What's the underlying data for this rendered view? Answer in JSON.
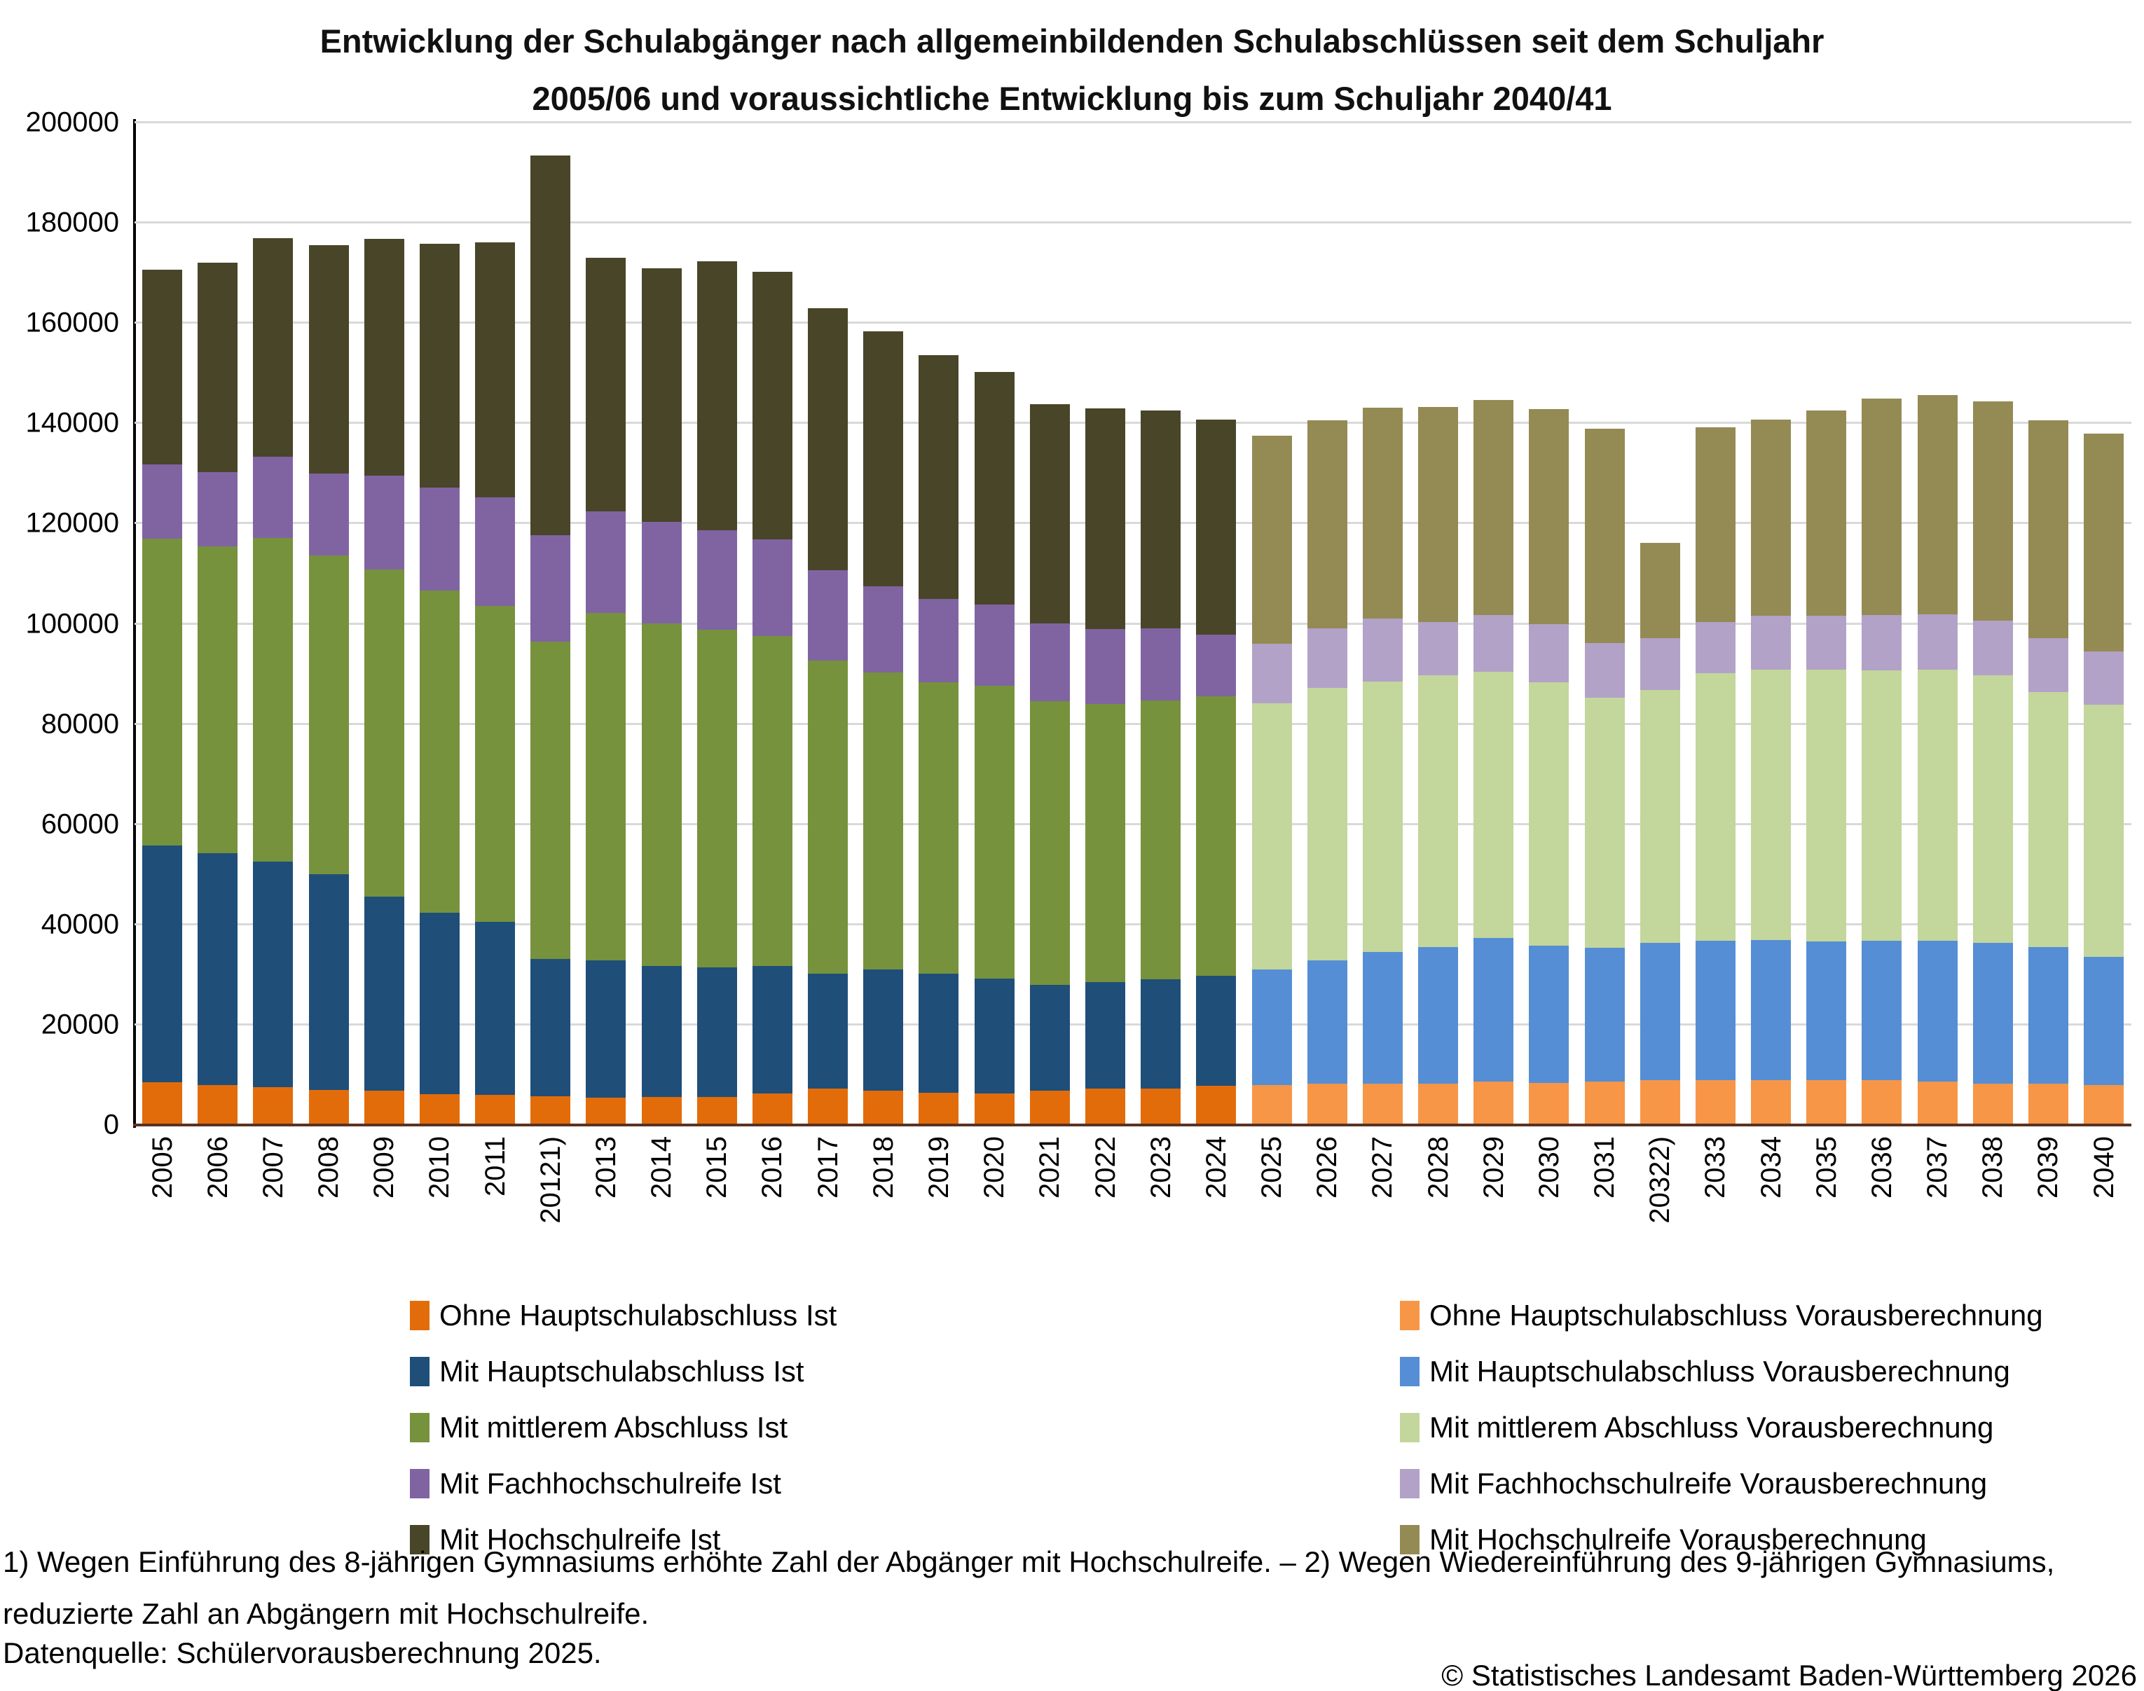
{
  "title": {
    "line1": "Entwicklung der Schulabgänger nach allgemeinbildenden Schulabschlüssen seit dem Schuljahr",
    "line2": "2005/06 und voraussichtliche Entwicklung bis zum Schuljahr 2040/41"
  },
  "chart_data": {
    "type": "bar",
    "stacked": true,
    "title": "Entwicklung der Schulabgänger nach allgemeinbildenden Schulabschlüssen seit dem Schuljahr 2005/06 und voraussichtliche Entwicklung bis zum Schuljahr 2040/41",
    "ylim": [
      0,
      200000
    ],
    "ytick_step": 20000,
    "y_ticks": [
      0,
      20000,
      40000,
      60000,
      80000,
      100000,
      120000,
      140000,
      160000,
      180000,
      200000
    ],
    "grid": "horizontal",
    "legend_position": "bottom",
    "categories": [
      "2005",
      "2006",
      "2007",
      "2008",
      "2009",
      "2010",
      "2011",
      "20121)",
      "2013",
      "2014",
      "2015",
      "2016",
      "2017",
      "2018",
      "2019",
      "2020",
      "2021",
      "2022",
      "2023",
      "2024",
      "2025",
      "2026",
      "2027",
      "2028",
      "2029",
      "2030",
      "2031",
      "20322)",
      "2033",
      "2034",
      "2035",
      "2036",
      "2037",
      "2038",
      "2039",
      "2040"
    ],
    "ist_last_index": 19,
    "series": [
      {
        "name": "Ohne Hauptschulabschluss",
        "color_ist": "#E36C0A",
        "color_proj": "#F79646",
        "values": [
          8500,
          8000,
          7500,
          7000,
          6800,
          6200,
          6000,
          5800,
          5400,
          5600,
          5600,
          6300,
          7200,
          6900,
          6400,
          6300,
          6800,
          7200,
          7300,
          7800,
          8000,
          8300,
          8300,
          8300,
          8700,
          8400,
          8700,
          9000,
          9000,
          9000,
          9000,
          9000,
          8700,
          8300,
          8300,
          8000
        ]
      },
      {
        "name": "Mit Hauptschulabschluss",
        "color_ist": "#1F4E79",
        "color_proj": "#558ED5",
        "values": [
          47200,
          46300,
          45100,
          43100,
          38700,
          36100,
          34500,
          27300,
          27500,
          26100,
          25800,
          25400,
          23000,
          24200,
          23800,
          22900,
          21100,
          21300,
          21800,
          22000,
          23000,
          24500,
          26200,
          27200,
          28600,
          27400,
          26700,
          27300,
          27800,
          27900,
          27600,
          27700,
          28000,
          28100,
          27200,
          25600
        ]
      },
      {
        "name": "Mit mittlerem Abschluss",
        "color_ist": "#76923C",
        "color_proj": "#C3D69B",
        "values": [
          61300,
          61200,
          64500,
          63500,
          65300,
          64400,
          63100,
          63300,
          69300,
          68400,
          67400,
          65800,
          62400,
          59200,
          58200,
          58400,
          56600,
          55500,
          55600,
          55800,
          53200,
          54400,
          54000,
          54200,
          53100,
          52500,
          49800,
          50500,
          53300,
          53900,
          54200,
          54000,
          54200,
          53400,
          50900,
          50300
        ]
      },
      {
        "name": "Mit Fachhochschulreife",
        "color_ist": "#8064A2",
        "color_proj": "#B2A2C7",
        "values": [
          14800,
          14800,
          16200,
          16400,
          18800,
          20500,
          21700,
          21300,
          20200,
          20200,
          19900,
          19400,
          18100,
          17200,
          16500,
          16300,
          15600,
          15000,
          14400,
          12200,
          11800,
          11900,
          12500,
          10700,
          11400,
          11700,
          10900,
          10400,
          10300,
          10800,
          10800,
          11100,
          11000,
          10800,
          10800,
          10600
        ]
      },
      {
        "name": "Mit Hochschulreife",
        "color_ist": "#494529",
        "color_proj": "#948A54",
        "values": [
          38800,
          41700,
          43600,
          45500,
          47200,
          48600,
          50800,
          75800,
          50600,
          50700,
          53700,
          53300,
          52200,
          50800,
          48700,
          46300,
          43700,
          44000,
          43400,
          42900,
          41600,
          41500,
          42100,
          42800,
          42800,
          42800,
          42900,
          19000,
          38800,
          39200,
          41000,
          43200,
          43700,
          43800,
          43400,
          43500
        ]
      }
    ]
  },
  "legend": {
    "left": [
      {
        "label": "Ohne Hauptschulabschluss Ist",
        "color": "#E36C0A"
      },
      {
        "label": "Mit Hauptschulabschluss Ist",
        "color": "#1F4E79"
      },
      {
        "label": "Mit mittlerem Abschluss Ist",
        "color": "#76923C"
      },
      {
        "label": "Mit Fachhochschulreife Ist",
        "color": "#8064A2"
      },
      {
        "label": "Mit Hochschulreife Ist",
        "color": "#494529"
      }
    ],
    "right": [
      {
        "label": "Ohne Hauptschulabschluss Vorausberechnung",
        "color": "#F79646"
      },
      {
        "label": "Mit Hauptschulabschluss Vorausberechnung",
        "color": "#558ED5"
      },
      {
        "label": "Mit mittlerem Abschluss Vorausberechnung",
        "color": "#C3D69B"
      },
      {
        "label": "Mit Fachhochschulreife Vorausberechnung",
        "color": "#B2A2C7"
      },
      {
        "label": "Mit Hochschulreife Vorausberechnung",
        "color": "#948A54"
      }
    ]
  },
  "footnotes": {
    "line1": "1) Wegen Einführung des 8-jährigen Gymnasiums erhöhte Zahl der Abgänger mit Hochschulreife. – 2) Wegen Wiedereinführung des 9-jährigen Gymnasiums,",
    "line2": "reduzierte Zahl an Abgängern mit Hochschulreife.",
    "source": "Datenquelle: Schülervorausberechnung 2025."
  },
  "copyright": "© Statistisches Landesamt Baden-Württemberg 2026"
}
